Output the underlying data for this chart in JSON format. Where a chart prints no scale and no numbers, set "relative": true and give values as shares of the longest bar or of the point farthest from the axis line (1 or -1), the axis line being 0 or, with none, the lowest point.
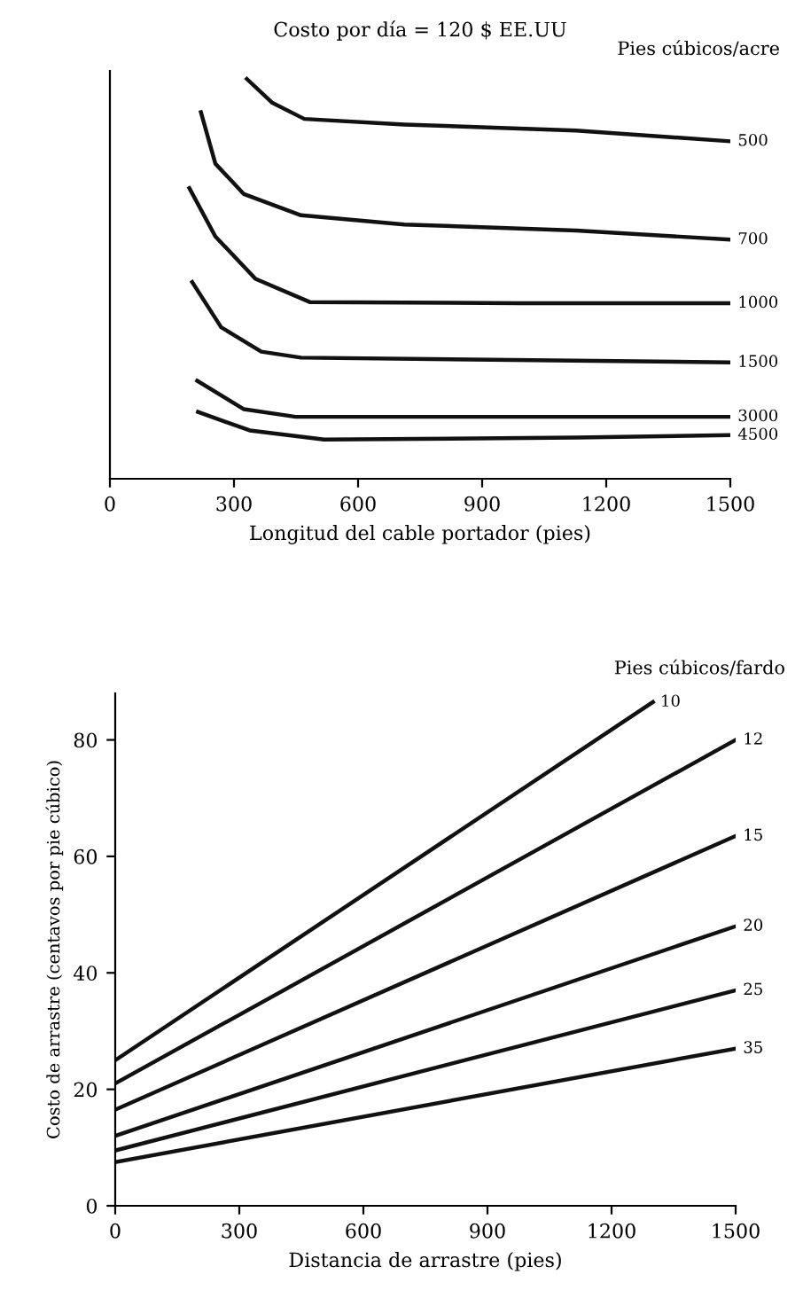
{
  "chart_data": [
    {
      "type": "line",
      "title": "Costo por día = 120 $ EE.UU",
      "xlabel": "Longitud del cable portador (pies)",
      "legend_title": "Pies cúbicos/acre",
      "relative": true,
      "xlim": [
        0,
        1500
      ],
      "xticks": [
        0,
        300,
        600,
        900,
        1200,
        1500
      ],
      "grid": false,
      "series": [
        {
          "name": "500",
          "color": "#111111",
          "x": [
            331,
            393,
            470,
            712,
            1127,
            1500
          ],
          "values": [
            1.0,
            0.94,
            0.9,
            0.886,
            0.871,
            0.844
          ]
        },
        {
          "name": "700",
          "color": "#111111",
          "x": [
            220,
            255,
            324,
            462,
            712,
            1127,
            1500
          ],
          "values": [
            0.917,
            0.788,
            0.712,
            0.659,
            0.636,
            0.621,
            0.598
          ]
        },
        {
          "name": "1000",
          "color": "#111111",
          "x": [
            192,
            255,
            352,
            483,
            989,
            1500
          ],
          "values": [
            0.727,
            0.606,
            0.5,
            0.442,
            0.439,
            0.439
          ]
        },
        {
          "name": "1500",
          "color": "#111111",
          "x": [
            199,
            269,
            366,
            462,
            1500
          ],
          "values": [
            0.492,
            0.379,
            0.318,
            0.303,
            0.291
          ]
        },
        {
          "name": "3000",
          "color": "#111111",
          "x": [
            211,
            324,
            449,
            1500
          ],
          "values": [
            0.245,
            0.174,
            0.155,
            0.155
          ]
        },
        {
          "name": "4500",
          "color": "#111111",
          "x": [
            213,
            338,
            518,
            1127,
            1500
          ],
          "values": [
            0.167,
            0.121,
            0.098,
            0.103,
            0.109
          ]
        }
      ]
    },
    {
      "type": "line",
      "xlabel": "Distancia de arrastre (pies)",
      "ylabel": "Costo de arrastre (centavos por pie cúbico)",
      "legend_title": "Pies cúbicos/fardo",
      "xlim": [
        0,
        1500
      ],
      "xticks": [
        0,
        300,
        600,
        900,
        1200,
        1500
      ],
      "ylim": [
        0,
        88
      ],
      "yticks": [
        0,
        20,
        40,
        60,
        80
      ],
      "grid": false,
      "series": [
        {
          "name": "10",
          "color": "#111111",
          "x": [
            0,
            1300
          ],
          "values": [
            25,
            86.5
          ]
        },
        {
          "name": "12",
          "color": "#111111",
          "x": [
            0,
            1500
          ],
          "values": [
            21,
            80
          ]
        },
        {
          "name": "15",
          "color": "#111111",
          "x": [
            0,
            1500
          ],
          "values": [
            16.5,
            63.5
          ]
        },
        {
          "name": "20",
          "color": "#111111",
          "x": [
            0,
            1500
          ],
          "values": [
            12,
            48
          ]
        },
        {
          "name": "25",
          "color": "#111111",
          "x": [
            0,
            1500
          ],
          "values": [
            9.5,
            37
          ]
        },
        {
          "name": "35",
          "color": "#111111",
          "x": [
            0,
            1500
          ],
          "values": [
            7.5,
            27
          ]
        }
      ]
    }
  ]
}
